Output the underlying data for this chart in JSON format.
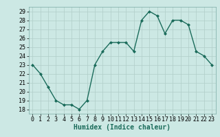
{
  "xlabel": "Humidex (Indice chaleur)",
  "ylabel": "",
  "x": [
    0,
    1,
    2,
    3,
    4,
    5,
    6,
    7,
    8,
    9,
    10,
    11,
    12,
    13,
    14,
    15,
    16,
    17,
    18,
    19,
    20,
    21,
    22,
    23
  ],
  "y": [
    23,
    22,
    20.5,
    19,
    18.5,
    18.5,
    18,
    19,
    23,
    24.5,
    25.5,
    25.5,
    25.5,
    24.5,
    28,
    29,
    28.5,
    26.5,
    28,
    28,
    27.5,
    24.5,
    24,
    23
  ],
  "line_color": "#1a6b5a",
  "marker": "D",
  "marker_size": 2.0,
  "bg_color": "#cce8e4",
  "grid_color": "#b0cdc8",
  "ylim": [
    17.5,
    29.5
  ],
  "yticks": [
    18,
    19,
    20,
    21,
    22,
    23,
    24,
    25,
    26,
    27,
    28,
    29
  ],
  "xlim": [
    -0.5,
    23.5
  ],
  "xticks": [
    0,
    1,
    2,
    3,
    4,
    5,
    6,
    7,
    8,
    9,
    10,
    11,
    12,
    13,
    14,
    15,
    16,
    17,
    18,
    19,
    20,
    21,
    22,
    23
  ],
  "xlabel_fontsize": 7,
  "tick_fontsize": 6,
  "line_width": 1.0
}
